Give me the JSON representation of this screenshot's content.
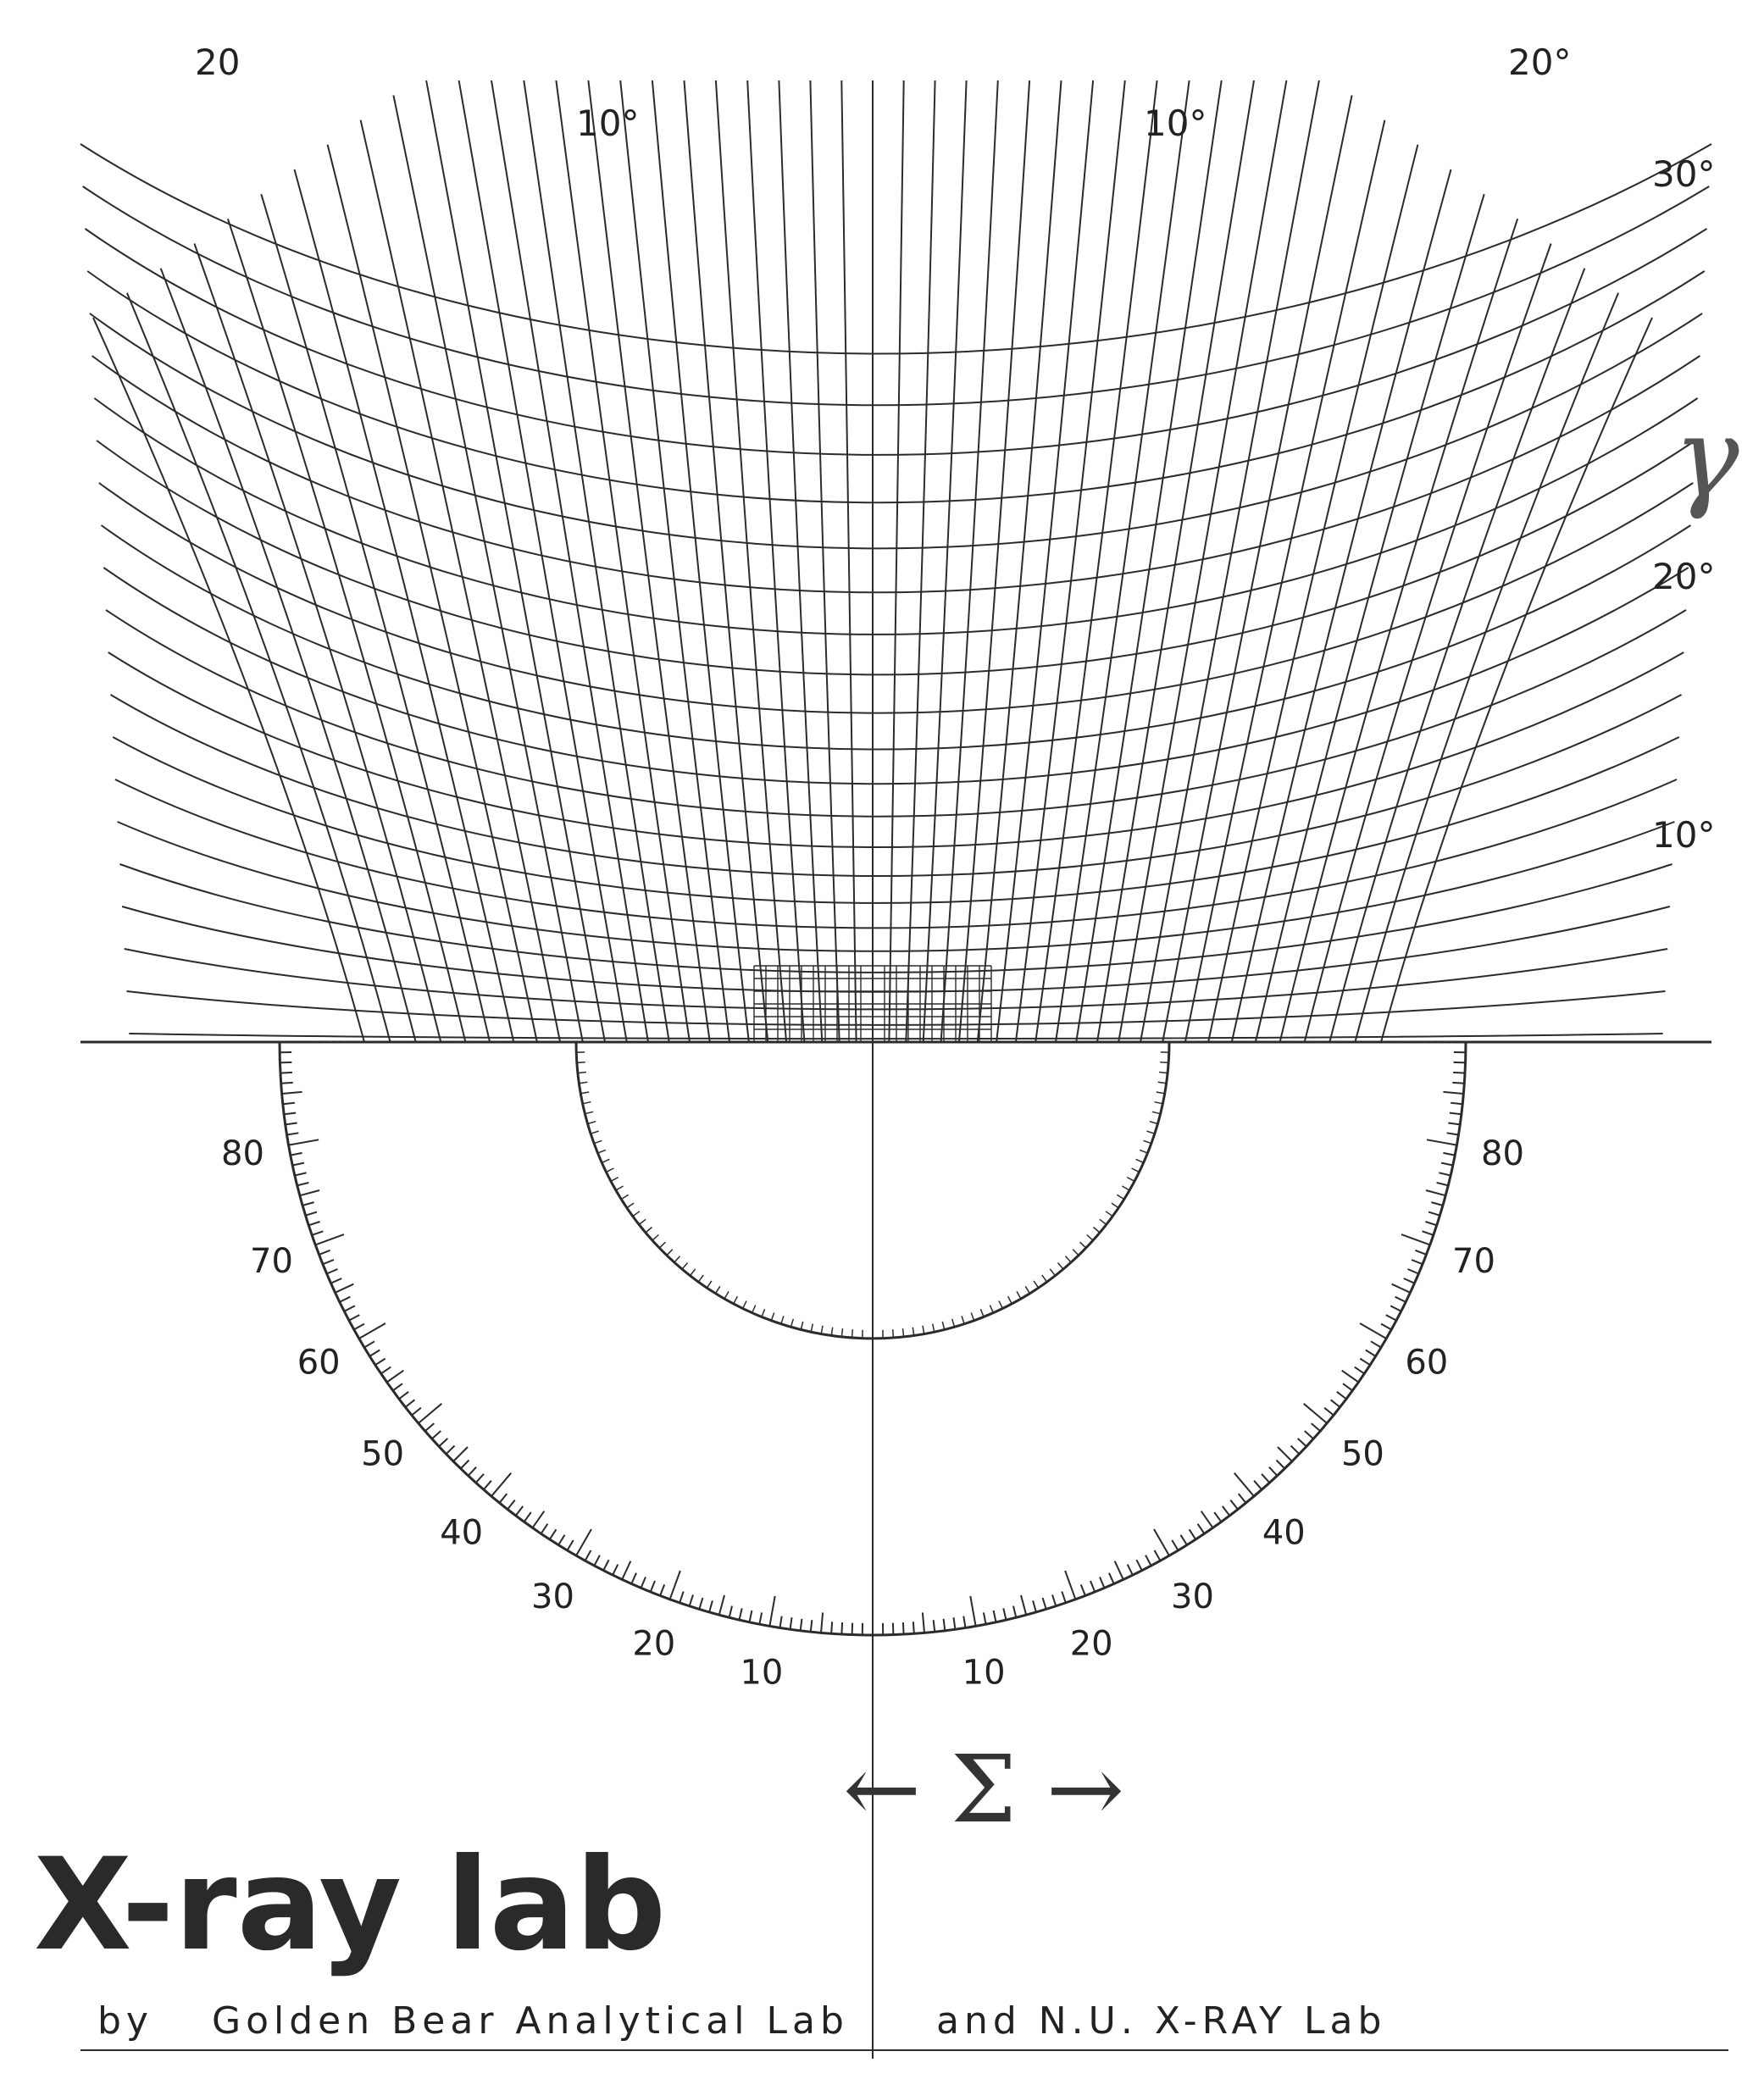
{
  "chart": {
    "kind": "polar stereographic net (upper grid) with semicircular protractor scale (lower)",
    "grid_top_labels": [
      "20",
      "10°",
      "10°",
      "20°"
    ],
    "grid_right_labels": [
      "30°",
      "20°",
      "10°"
    ],
    "gamma_symbol": "γ",
    "protractor_left_labels": [
      "80",
      "70",
      "60",
      "50",
      "40",
      "30",
      "20",
      "10"
    ],
    "protractor_right_labels": [
      "10",
      "20",
      "30",
      "40",
      "50",
      "60",
      "70",
      "80"
    ],
    "epsilon_label": "← Σ →",
    "brand_text": "X-ray lab",
    "credit_parts": [
      "by",
      "Golden Bear Analytical Lab",
      "and N.U. X-RAY Lab"
    ],
    "line_color": "#2b2b2b"
  }
}
